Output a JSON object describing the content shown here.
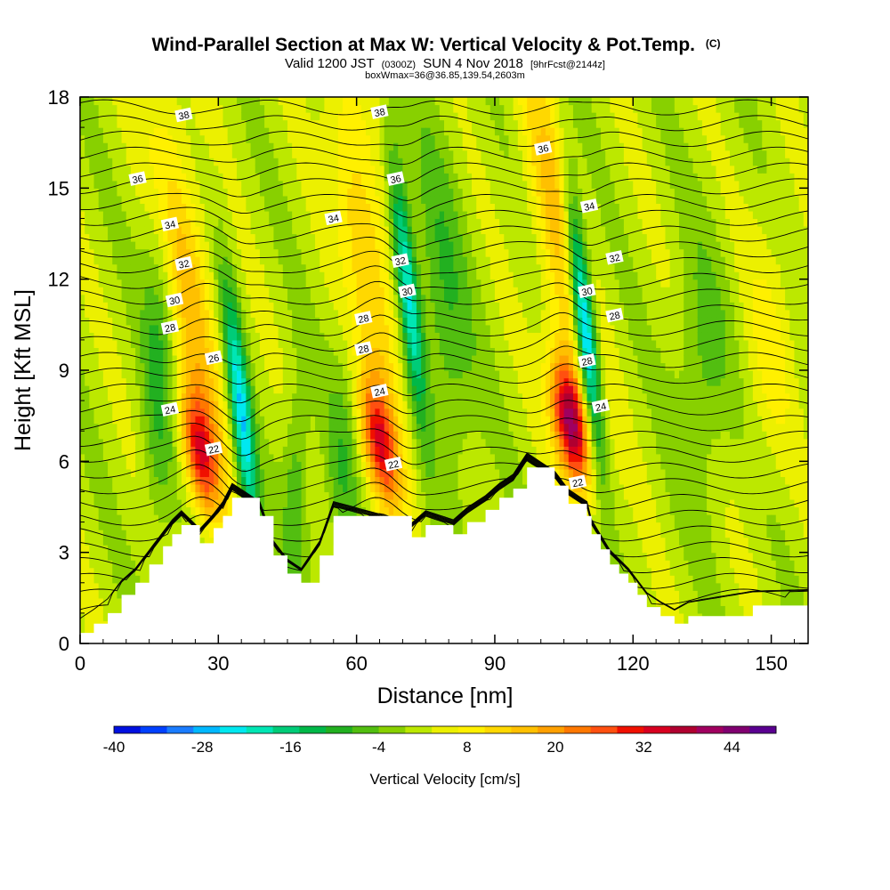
{
  "chart_data": {
    "type": "heatmap",
    "title": "Wind-Parallel Section at Max W: Vertical Velocity & Pot.Temp.",
    "title_mark": "(C)",
    "subtitle_parts": [
      "Valid 1200 JST",
      "(0300Z)",
      "SUN 4 Nov 2018",
      "[9hrFcst@2144z]"
    ],
    "subtitle2": "boxWmax=36@36.85,139.54,2603m",
    "xlabel": "Distance [nm]",
    "ylabel": "Height [Kft MSL]",
    "xlim": [
      0,
      158
    ],
    "ylim": [
      0,
      18
    ],
    "xticks": [
      0,
      30,
      60,
      90,
      120,
      150
    ],
    "yticks": [
      0,
      3,
      6,
      9,
      12,
      15,
      18
    ],
    "colorbar": {
      "title": "Vertical Velocity [cm/s]",
      "min": -40,
      "max": 50,
      "step": 4,
      "tick_values": [
        -40,
        -28,
        -16,
        -4,
        8,
        20,
        32,
        44
      ],
      "colors": [
        "#0010e0",
        "#0040ff",
        "#1a7cff",
        "#00b8ff",
        "#00e8f0",
        "#00e6b4",
        "#00cc78",
        "#00b848",
        "#22b020",
        "#52be10",
        "#88d000",
        "#bce800",
        "#ecf000",
        "#fff000",
        "#ffd800",
        "#ffc000",
        "#ffa000",
        "#ff7800",
        "#ff5010",
        "#f01000",
        "#d80020",
        "#b00030",
        "#a00060",
        "#800070",
        "#5a0090"
      ]
    },
    "updrafts": [
      {
        "center_x": 26,
        "center_height": 6.3,
        "peak_w": 38
      },
      {
        "center_x": 65,
        "center_height": 6.6,
        "peak_w": 36
      },
      {
        "center_x": 106.5,
        "center_height": 7.3,
        "peak_w": 50
      }
    ],
    "downdrafts": [
      {
        "center_x": 35,
        "center_height": 7.5,
        "min_w": -24
      },
      {
        "center_x": 71,
        "center_height": 11.8,
        "min_w": -22
      },
      {
        "center_x": 109.5,
        "center_height": 10.5,
        "min_w": -36
      }
    ],
    "terrain": [
      {
        "x": 0,
        "h": 0.35
      },
      {
        "x": 3,
        "h": 0.65
      },
      {
        "x": 6,
        "h": 1.0
      },
      {
        "x": 9,
        "h": 1.6
      },
      {
        "x": 12,
        "h": 2.0
      },
      {
        "x": 15,
        "h": 2.6
      },
      {
        "x": 18,
        "h": 3.2
      },
      {
        "x": 20,
        "h": 3.6
      },
      {
        "x": 22,
        "h": 3.9
      },
      {
        "x": 26,
        "h": 3.3
      },
      {
        "x": 29,
        "h": 3.8
      },
      {
        "x": 31,
        "h": 4.2
      },
      {
        "x": 33,
        "h": 4.8
      },
      {
        "x": 39,
        "h": 4.2
      },
      {
        "x": 42,
        "h": 2.9
      },
      {
        "x": 45,
        "h": 2.3
      },
      {
        "x": 48,
        "h": 2.0
      },
      {
        "x": 52,
        "h": 2.9
      },
      {
        "x": 55,
        "h": 4.2
      },
      {
        "x": 72,
        "h": 3.5
      },
      {
        "x": 75,
        "h": 3.9
      },
      {
        "x": 81,
        "h": 3.6
      },
      {
        "x": 84,
        "h": 4.0
      },
      {
        "x": 88,
        "h": 4.4
      },
      {
        "x": 91,
        "h": 4.8
      },
      {
        "x": 94,
        "h": 5.1
      },
      {
        "x": 97,
        "h": 5.8
      },
      {
        "x": 103,
        "h": 5.2
      },
      {
        "x": 106,
        "h": 4.6
      },
      {
        "x": 110,
        "h": 4.2
      },
      {
        "x": 111,
        "h": 3.6
      },
      {
        "x": 113,
        "h": 3.1
      },
      {
        "x": 115,
        "h": 2.6
      },
      {
        "x": 117,
        "h": 2.3
      },
      {
        "x": 119,
        "h": 2.0
      },
      {
        "x": 121,
        "h": 1.6
      },
      {
        "x": 123,
        "h": 1.2
      },
      {
        "x": 126,
        "h": 0.9
      },
      {
        "x": 129,
        "h": 0.65
      },
      {
        "x": 132,
        "h": 0.9
      },
      {
        "x": 146,
        "h": 1.25
      },
      {
        "x": 158,
        "h": 1.3
      }
    ],
    "theta_labels": [
      {
        "v": "38",
        "x": 22.5,
        "h": 17.4
      },
      {
        "v": "38",
        "x": 65,
        "h": 17.5
      },
      {
        "v": "36",
        "x": 12.5,
        "h": 15.3
      },
      {
        "v": "36",
        "x": 68.5,
        "h": 15.3
      },
      {
        "v": "36",
        "x": 100.5,
        "h": 16.3
      },
      {
        "v": "34",
        "x": 19.5,
        "h": 13.8
      },
      {
        "v": "34",
        "x": 55,
        "h": 14.0
      },
      {
        "v": "34",
        "x": 110.5,
        "h": 14.4
      },
      {
        "v": "32",
        "x": 22.5,
        "h": 12.5
      },
      {
        "v": "32",
        "x": 69.5,
        "h": 12.6
      },
      {
        "v": "32",
        "x": 116,
        "h": 12.7
      },
      {
        "v": "30",
        "x": 20.5,
        "h": 11.3
      },
      {
        "v": "30",
        "x": 71,
        "h": 11.6
      },
      {
        "v": "30",
        "x": 110,
        "h": 11.6
      },
      {
        "v": "28",
        "x": 19.5,
        "h": 10.4
      },
      {
        "v": "28",
        "x": 61.5,
        "h": 10.7
      },
      {
        "v": "28",
        "x": 116,
        "h": 10.8
      },
      {
        "v": "28",
        "x": 61.5,
        "h": 9.7
      },
      {
        "v": "28",
        "x": 110,
        "h": 9.3
      },
      {
        "v": "26",
        "x": 29,
        "h": 9.4
      },
      {
        "v": "24",
        "x": 19.5,
        "h": 7.7
      },
      {
        "v": "24",
        "x": 65,
        "h": 8.3
      },
      {
        "v": "24",
        "x": 113,
        "h": 7.8
      },
      {
        "v": "22",
        "x": 29,
        "h": 6.4
      },
      {
        "v": "22",
        "x": 68,
        "h": 5.9
      },
      {
        "v": "22",
        "x": 108,
        "h": 5.3
      }
    ]
  }
}
